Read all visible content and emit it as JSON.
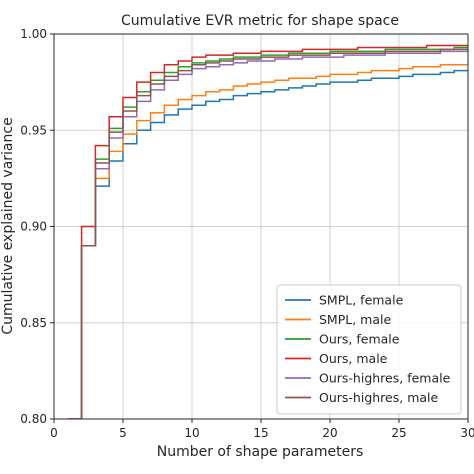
{
  "chart_data": {
    "type": "line",
    "title": "Cumulative EVR metric for shape space",
    "xlabel": "Number of shape parameters",
    "ylabel": "Cumulative explained variance",
    "xlim": [
      0,
      30
    ],
    "ylim": [
      0.8,
      1.0
    ],
    "x_ticks": [
      "0",
      "5",
      "10",
      "15",
      "20",
      "25",
      "30"
    ],
    "y_ticks": [
      "0.80",
      "0.85",
      "0.90",
      "0.95",
      "1.00"
    ],
    "grid": true,
    "step": true,
    "legend_position": "lower-right",
    "x": [
      1,
      2,
      3,
      4,
      5,
      6,
      7,
      8,
      9,
      10,
      11,
      12,
      13,
      14,
      15,
      16,
      17,
      18,
      19,
      20,
      21,
      22,
      23,
      24,
      25,
      26,
      27,
      28,
      29,
      30
    ],
    "series": [
      {
        "name": "SMPL, female",
        "color": "#1f77b4",
        "values": [
          0.79,
          0.89,
          0.921,
          0.934,
          0.943,
          0.95,
          0.954,
          0.958,
          0.961,
          0.963,
          0.965,
          0.966,
          0.968,
          0.969,
          0.97,
          0.971,
          0.972,
          0.973,
          0.974,
          0.975,
          0.975,
          0.976,
          0.977,
          0.977,
          0.978,
          0.979,
          0.979,
          0.98,
          0.981,
          0.981
        ]
      },
      {
        "name": "SMPL, male",
        "color": "#ff7f0e",
        "values": [
          0.8,
          0.89,
          0.925,
          0.939,
          0.948,
          0.955,
          0.959,
          0.963,
          0.966,
          0.968,
          0.97,
          0.971,
          0.973,
          0.974,
          0.975,
          0.976,
          0.977,
          0.977,
          0.978,
          0.979,
          0.979,
          0.98,
          0.981,
          0.981,
          0.982,
          0.983,
          0.983,
          0.984,
          0.984,
          0.985
        ]
      },
      {
        "name": "Ours, female",
        "color": "#2ca02c",
        "values": [
          0.79,
          0.89,
          0.935,
          0.951,
          0.962,
          0.97,
          0.976,
          0.98,
          0.983,
          0.985,
          0.986,
          0.987,
          0.988,
          0.988,
          0.989,
          0.989,
          0.99,
          0.99,
          0.99,
          0.991,
          0.991,
          0.991,
          0.991,
          0.992,
          0.992,
          0.992,
          0.992,
          0.992,
          0.993,
          0.993
        ]
      },
      {
        "name": "Ours, male",
        "color": "#d62728",
        "values": [
          0.8,
          0.9,
          0.942,
          0.957,
          0.967,
          0.975,
          0.98,
          0.984,
          0.986,
          0.988,
          0.989,
          0.989,
          0.99,
          0.99,
          0.991,
          0.991,
          0.991,
          0.992,
          0.992,
          0.992,
          0.992,
          0.993,
          0.993,
          0.993,
          0.993,
          0.993,
          0.994,
          0.994,
          0.994,
          0.994
        ]
      },
      {
        "name": "Ours-highres, female",
        "color": "#9467bd",
        "values": [
          0.79,
          0.89,
          0.93,
          0.946,
          0.957,
          0.965,
          0.971,
          0.976,
          0.979,
          0.982,
          0.983,
          0.984,
          0.985,
          0.986,
          0.986,
          0.987,
          0.987,
          0.988,
          0.988,
          0.988,
          0.989,
          0.989,
          0.989,
          0.99,
          0.99,
          0.99,
          0.99,
          0.991,
          0.991,
          0.991
        ]
      },
      {
        "name": "Ours-highres, male",
        "color": "#8c564b",
        "values": [
          0.79,
          0.89,
          0.933,
          0.949,
          0.96,
          0.968,
          0.974,
          0.978,
          0.981,
          0.984,
          0.985,
          0.986,
          0.987,
          0.987,
          0.988,
          0.988,
          0.989,
          0.989,
          0.989,
          0.99,
          0.99,
          0.99,
          0.99,
          0.991,
          0.991,
          0.991,
          0.991,
          0.992,
          0.992,
          0.992
        ]
      }
    ]
  }
}
